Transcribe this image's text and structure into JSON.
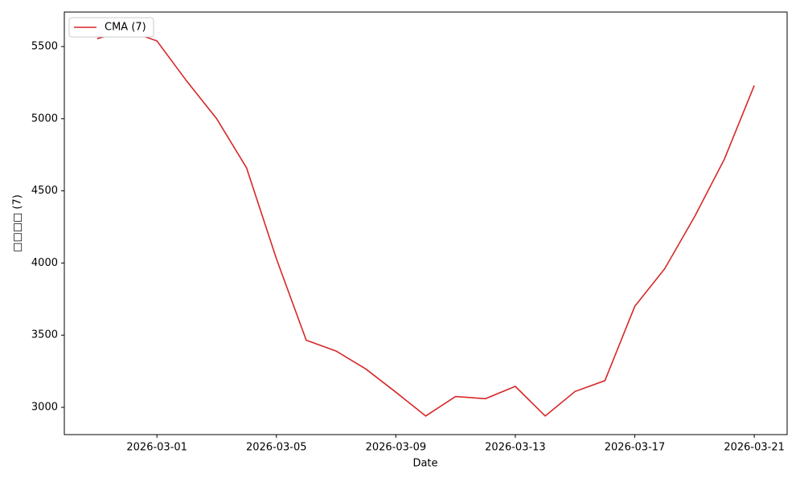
{
  "chart_data": {
    "type": "line",
    "x": [
      "2026-02-27",
      "2026-02-28",
      "2026-03-01",
      "2026-03-02",
      "2026-03-03",
      "2026-03-04",
      "2026-03-05",
      "2026-03-06",
      "2026-03-07",
      "2026-03-08",
      "2026-03-09",
      "2026-03-10",
      "2026-03-11",
      "2026-03-12",
      "2026-03-13",
      "2026-03-14",
      "2026-03-15",
      "2026-03-16",
      "2026-03-17",
      "2026-03-18",
      "2026-03-19",
      "2026-03-20",
      "2026-03-21"
    ],
    "series": [
      {
        "name": "CMA (7)",
        "color": "#d62728",
        "values": [
          5555,
          5610,
          5539,
          5260,
          5000,
          4660,
          4030,
          3465,
          3390,
          3265,
          3105,
          2940,
          3075,
          3060,
          3145,
          2940,
          3110,
          3185,
          3700,
          3960,
          4320,
          4720,
          5230
        ]
      }
    ],
    "xlabel": "Date",
    "ylabel": "□□□□ (7)",
    "xlim": [
      "2026-02-25T21:36",
      "2026-03-22T02:24"
    ],
    "xticks": [
      "2026-03-01",
      "2026-03-05",
      "2026-03-09",
      "2026-03-13",
      "2026-03-17",
      "2026-03-21"
    ],
    "ylim": [
      2811,
      5739
    ],
    "yticks": [
      3000,
      3500,
      4000,
      4500,
      5000,
      5500
    ],
    "legend": "upper left",
    "grid": false
  }
}
